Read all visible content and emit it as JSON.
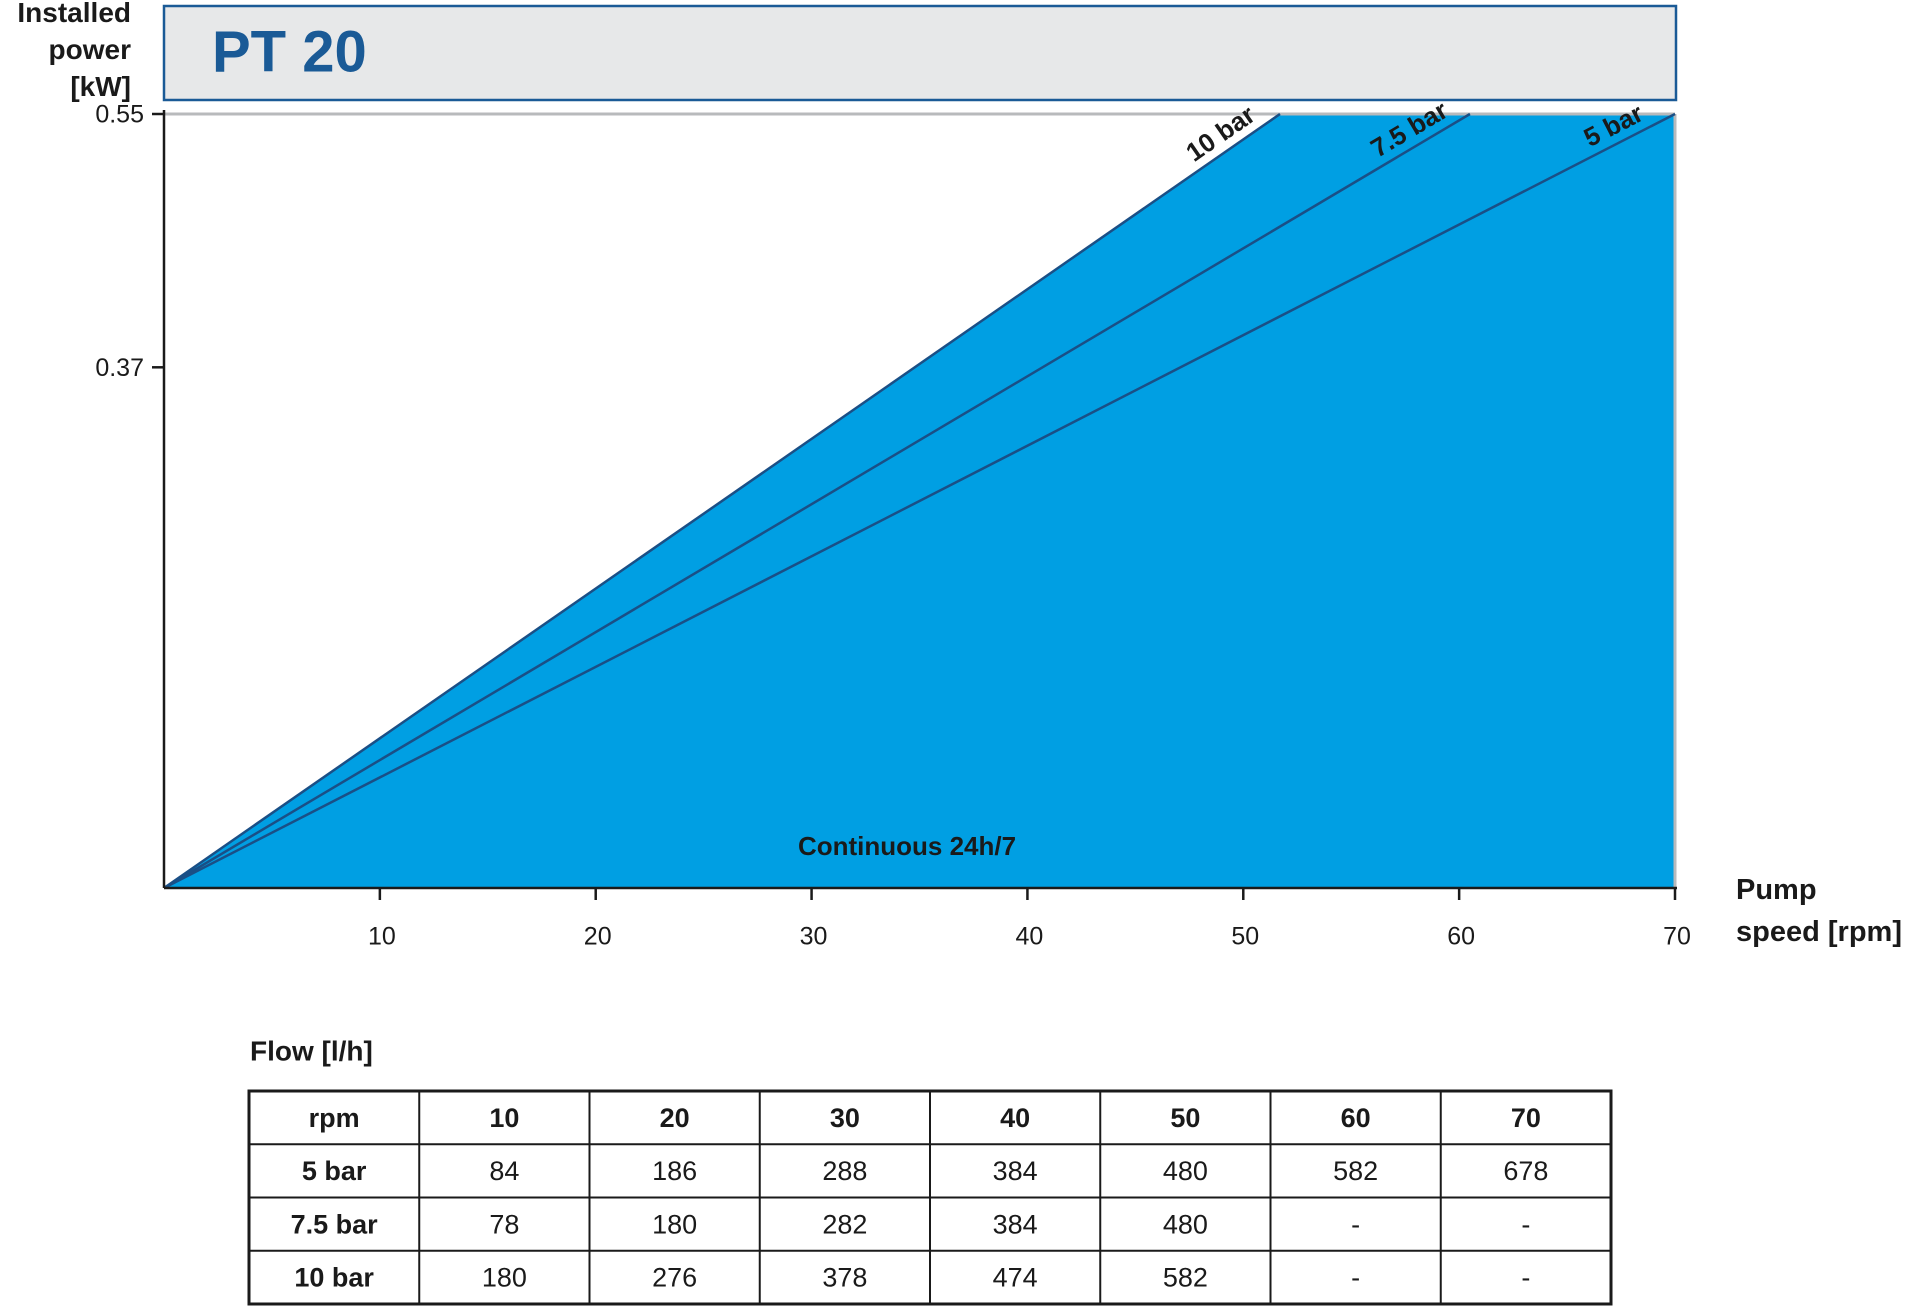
{
  "chart_data": {
    "type": "area",
    "title": "PT 20",
    "y_label": "Installed power [kW]",
    "x_label": "Pump speed [rpm]",
    "annotation": "Continuous 24h/7",
    "fill_color": "#009fe3",
    "xlim": [
      0,
      70
    ],
    "xticks": [
      10,
      20,
      30,
      40,
      50,
      60,
      70
    ],
    "ylim": [
      0,
      0.55
    ],
    "yticks": [
      0.37,
      0.55
    ],
    "series": [
      {
        "name": "10 bar",
        "color": "#1a4f86",
        "x": [
          0,
          51.7
        ],
        "values": [
          0,
          0.55
        ]
      },
      {
        "name": "7.5 bar",
        "color": "#1a4f86",
        "x": [
          0,
          60.5
        ],
        "values": [
          0,
          0.55
        ]
      },
      {
        "name": "5 bar",
        "color": "#1a4f86",
        "x": [
          0,
          70
        ],
        "values": [
          0,
          0.55
        ]
      }
    ]
  },
  "table": {
    "title": "Flow [l/h]",
    "header": [
      "rpm",
      "10",
      "20",
      "30",
      "40",
      "50",
      "60",
      "70"
    ],
    "rows": [
      [
        "5 bar",
        "84",
        "186",
        "288",
        "384",
        "480",
        "582",
        "678"
      ],
      [
        "7.5 bar",
        "78",
        "180",
        "282",
        "384",
        "480",
        "-",
        "-"
      ],
      [
        "10 bar",
        "180",
        "276",
        "378",
        "474",
        "582",
        "-",
        "-"
      ]
    ]
  }
}
